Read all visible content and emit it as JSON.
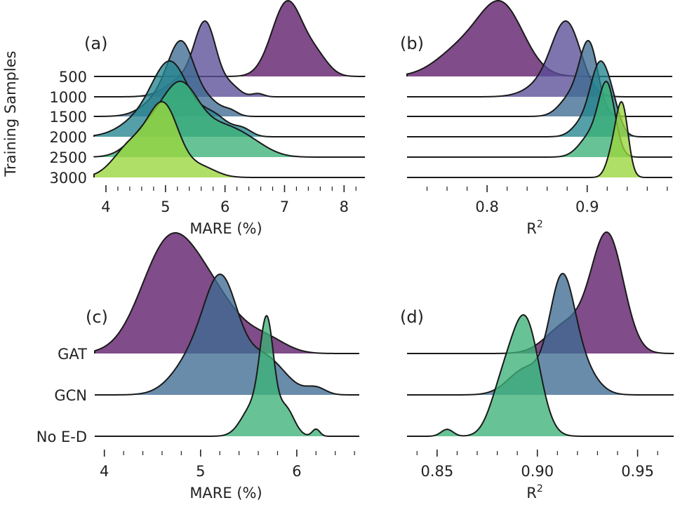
{
  "chart_data": [
    {
      "id": "a",
      "type": "ridgeline",
      "panel_label": "(a)",
      "xlabel": "MARE (%)",
      "ylabel": "Training Samples",
      "xlim": [
        3.8,
        8.35
      ],
      "xticks": [
        "4",
        "5",
        "6",
        "7",
        "8"
      ],
      "categories": [
        "500",
        "1000",
        "1500",
        "2000",
        "2500",
        "3000"
      ],
      "series": [
        {
          "name": "500",
          "color": "#5c1a68",
          "components": [
            [
              7.05,
              0.26,
              1.0
            ],
            [
              7.55,
              0.2,
              0.22
            ]
          ]
        },
        {
          "name": "1000",
          "color": "#5a4e98",
          "components": [
            [
              5.68,
              0.18,
              1.0
            ],
            [
              5.35,
              0.3,
              0.3
            ],
            [
              6.1,
              0.15,
              0.15
            ],
            [
              6.55,
              0.1,
              0.05
            ]
          ]
        },
        {
          "name": "1500",
          "color": "#3f6b92",
          "components": [
            [
              5.28,
              0.22,
              1.0
            ],
            [
              4.95,
              0.3,
              0.3
            ],
            [
              5.75,
              0.2,
              0.2
            ],
            [
              6.1,
              0.12,
              0.07
            ]
          ]
        },
        {
          "name": "2000",
          "color": "#25858f",
          "components": [
            [
              5.1,
              0.3,
              1.0
            ],
            [
              4.6,
              0.35,
              0.25
            ],
            [
              5.8,
              0.25,
              0.3
            ],
            [
              6.3,
              0.15,
              0.1
            ]
          ]
        },
        {
          "name": "2500",
          "color": "#3cb277",
          "components": [
            [
              5.25,
              0.3,
              1.0
            ],
            [
              4.7,
              0.3,
              0.4
            ],
            [
              5.95,
              0.4,
              0.45
            ],
            [
              6.5,
              0.3,
              0.1
            ]
          ]
        },
        {
          "name": "3000",
          "color": "#9ad63c",
          "components": [
            [
              4.98,
              0.25,
              1.0
            ],
            [
              4.45,
              0.3,
              0.5
            ],
            [
              5.6,
              0.25,
              0.15
            ]
          ]
        }
      ]
    },
    {
      "id": "b",
      "type": "ridgeline",
      "panel_label": "(b)",
      "xlabel": "R",
      "xlabel_sup": "2",
      "xlim": [
        0.72,
        0.985
      ],
      "xticks": [
        "0.8",
        "0.9"
      ],
      "categories": [
        "500",
        "1000",
        "1500",
        "2000",
        "2500",
        "3000"
      ],
      "series": [
        {
          "name": "500",
          "color": "#5c1a68",
          "components": [
            [
              0.815,
              0.022,
              1.0
            ],
            [
              0.775,
              0.025,
              0.4
            ]
          ]
        },
        {
          "name": "1000",
          "color": "#5a4e98",
          "components": [
            [
              0.88,
              0.014,
              1.0
            ],
            [
              0.865,
              0.02,
              0.3
            ]
          ]
        },
        {
          "name": "1500",
          "color": "#3f6b92",
          "components": [
            [
              0.902,
              0.009,
              1.0
            ],
            [
              0.885,
              0.012,
              0.3
            ]
          ]
        },
        {
          "name": "2000",
          "color": "#25858f",
          "components": [
            [
              0.912,
              0.009,
              1.0
            ],
            [
              0.925,
              0.008,
              0.4
            ],
            [
              0.895,
              0.01,
              0.2
            ]
          ]
        },
        {
          "name": "2500",
          "color": "#3cb277",
          "components": [
            [
              0.92,
              0.008,
              1.0
            ],
            [
              0.905,
              0.012,
              0.35
            ]
          ]
        },
        {
          "name": "3000",
          "color": "#9ad63c",
          "components": [
            [
              0.935,
              0.006,
              1.0
            ],
            [
              0.925,
              0.006,
              0.3
            ]
          ]
        }
      ]
    },
    {
      "id": "c",
      "type": "ridgeline",
      "panel_label": "(c)",
      "xlabel": "MARE (%)",
      "xlim": [
        3.9,
        6.65
      ],
      "xticks": [
        "4",
        "5",
        "6"
      ],
      "categories": [
        "GAT",
        "GCN",
        "No E-D"
      ],
      "series": [
        {
          "name": "GAT",
          "color": "#5c1a68",
          "components": [
            [
              4.65,
              0.28,
              1.0
            ],
            [
              5.1,
              0.3,
              0.55
            ],
            [
              5.7,
              0.2,
              0.12
            ]
          ]
        },
        {
          "name": "GCN",
          "color": "#3f6b92",
          "components": [
            [
              5.22,
              0.17,
              1.0
            ],
            [
              4.95,
              0.22,
              0.4
            ],
            [
              5.65,
              0.22,
              0.4
            ],
            [
              6.2,
              0.1,
              0.07
            ]
          ]
        },
        {
          "name": "No E-D",
          "color": "#3cb277",
          "components": [
            [
              5.69,
              0.07,
              1.0
            ],
            [
              5.55,
              0.12,
              0.3
            ],
            [
              5.88,
              0.09,
              0.28
            ],
            [
              6.2,
              0.04,
              0.07
            ]
          ]
        }
      ]
    },
    {
      "id": "d",
      "type": "ridgeline",
      "panel_label": "(d)",
      "xlabel": "R",
      "xlabel_sup": "2",
      "xlim": [
        0.835,
        0.968
      ],
      "xticks": [
        "0.85",
        "0.90",
        "0.95"
      ],
      "categories": [
        "GAT",
        "GCN",
        "No E-D"
      ],
      "series": [
        {
          "name": "GAT",
          "color": "#5c1a68",
          "components": [
            [
              0.935,
              0.008,
              1.0
            ],
            [
              0.915,
              0.01,
              0.25
            ]
          ]
        },
        {
          "name": "GCN",
          "color": "#3f6b92",
          "components": [
            [
              0.912,
              0.006,
              1.0
            ],
            [
              0.92,
              0.008,
              0.35
            ],
            [
              0.895,
              0.009,
              0.28
            ]
          ]
        },
        {
          "name": "No E-D",
          "color": "#3cb277",
          "components": [
            [
              0.894,
              0.007,
              1.0
            ],
            [
              0.882,
              0.006,
              0.35
            ],
            [
              0.855,
              0.003,
              0.06
            ]
          ]
        }
      ]
    }
  ]
}
